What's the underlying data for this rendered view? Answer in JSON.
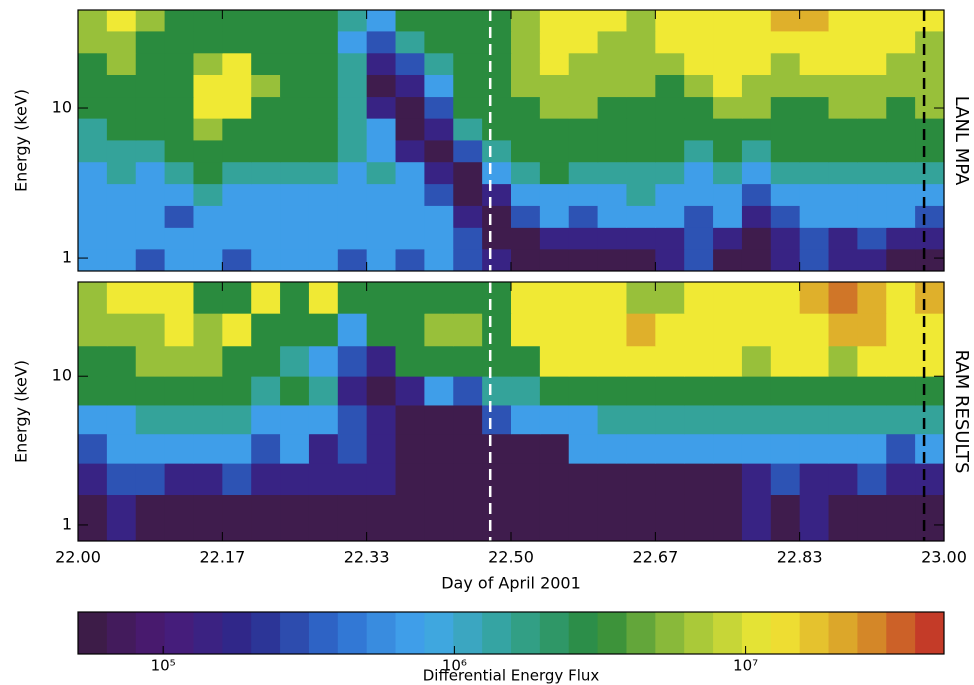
{
  "chart_data": [
    {
      "type": "heatmap",
      "panel_label": "LANL MPA",
      "ylabel": "Energy (keV)",
      "log_y": true,
      "xlim": [
        22,
        23
      ],
      "ylim": [
        0.82,
        45
      ],
      "yticks": [
        1,
        10
      ],
      "y_edges": [
        0.82,
        1.15,
        1.6,
        2.24,
        3.13,
        4.38,
        6.12,
        8.55,
        11.9,
        16.7,
        23.3,
        32.6,
        45
      ],
      "vlines": [
        {
          "value": 22.476,
          "color": "#ffffff"
        },
        {
          "value": 22.977,
          "color": "#000000"
        }
      ],
      "z": [
        [
          700000.0,
          700000.0,
          300000.0,
          700000.0,
          700000.0,
          300000.0,
          700000.0,
          700000.0,
          700000.0,
          300000.0,
          700000.0,
          300000.0,
          700000.0,
          300000.0,
          150000.0,
          60000.0,
          60000.0,
          60000.0,
          60000.0,
          60000.0,
          150000.0,
          300000.0,
          60000.0,
          60000.0,
          150000.0,
          300000.0,
          150000.0,
          150000.0,
          60000.0,
          60000.0
        ],
        [
          700000.0,
          700000.0,
          700000.0,
          700000.0,
          700000.0,
          700000.0,
          700000.0,
          700000.0,
          700000.0,
          700000.0,
          700000.0,
          700000.0,
          700000.0,
          300000.0,
          60000.0,
          60000.0,
          150000.0,
          150000.0,
          150000.0,
          150000.0,
          150000.0,
          300000.0,
          150000.0,
          60000.0,
          150000.0,
          300000.0,
          150000.0,
          300000.0,
          150000.0,
          150000.0
        ],
        [
          700000.0,
          700000.0,
          700000.0,
          300000.0,
          700000.0,
          700000.0,
          700000.0,
          700000.0,
          700000.0,
          700000.0,
          700000.0,
          700000.0,
          700000.0,
          150000.0,
          60000.0,
          300000.0,
          700000.0,
          300000.0,
          700000.0,
          700000.0,
          700000.0,
          300000.0,
          700000.0,
          150000.0,
          300000.0,
          700000.0,
          700000.0,
          700000.0,
          700000.0,
          300000.0
        ],
        [
          700000.0,
          700000.0,
          700000.0,
          700000.0,
          1500000.0,
          700000.0,
          700000.0,
          700000.0,
          700000.0,
          700000.0,
          700000.0,
          700000.0,
          300000.0,
          60000.0,
          150000.0,
          700000.0,
          700000.0,
          700000.0,
          700000.0,
          1500000.0,
          700000.0,
          700000.0,
          700000.0,
          300000.0,
          700000.0,
          700000.0,
          700000.0,
          700000.0,
          700000.0,
          700000.0
        ],
        [
          700000.0,
          1500000.0,
          700000.0,
          1500000.0,
          3000000.0,
          1500000.0,
          1500000.0,
          1500000.0,
          1500000.0,
          700000.0,
          1500000.0,
          700000.0,
          150000.0,
          60000.0,
          700000.0,
          1500000.0,
          3000000.0,
          1500000.0,
          1500000.0,
          1500000.0,
          1500000.0,
          700000.0,
          1500000.0,
          700000.0,
          1500000.0,
          1500000.0,
          1500000.0,
          1500000.0,
          1500000.0,
          1500000.0
        ],
        [
          1500000.0,
          1500000.0,
          1500000.0,
          3000000.0,
          3000000.0,
          3000000.0,
          3000000.0,
          3000000.0,
          3000000.0,
          1500000.0,
          700000.0,
          150000.0,
          60000.0,
          300000.0,
          1500000.0,
          3000000.0,
          3000000.0,
          3000000.0,
          3000000.0,
          3000000.0,
          3000000.0,
          1500000.0,
          3000000.0,
          1500000.0,
          3000000.0,
          3000000.0,
          3000000.0,
          3000000.0,
          3000000.0,
          3000000.0
        ],
        [
          1500000.0,
          3000000.0,
          3000000.0,
          3000000.0,
          6000000.0,
          3000000.0,
          3000000.0,
          3000000.0,
          3000000.0,
          1500000.0,
          700000.0,
          60000.0,
          150000.0,
          1500000.0,
          3000000.0,
          3000000.0,
          3000000.0,
          3000000.0,
          3000000.0,
          3000000.0,
          3000000.0,
          3000000.0,
          3000000.0,
          3000000.0,
          3000000.0,
          3000000.0,
          3000000.0,
          3000000.0,
          3000000.0,
          3000000.0
        ],
        [
          3000000.0,
          3000000.0,
          3000000.0,
          3000000.0,
          12000000.0,
          12000000.0,
          3000000.0,
          3000000.0,
          3000000.0,
          1500000.0,
          150000.0,
          60000.0,
          300000.0,
          3000000.0,
          3000000.0,
          3000000.0,
          6000000.0,
          6000000.0,
          3000000.0,
          3000000.0,
          3000000.0,
          3000000.0,
          6000000.0,
          6000000.0,
          3000000.0,
          3000000.0,
          6000000.0,
          6000000.0,
          3000000.0,
          6000000.0
        ],
        [
          3000000.0,
          3000000.0,
          3000000.0,
          3000000.0,
          12000000.0,
          12000000.0,
          6000000.0,
          3000000.0,
          3000000.0,
          1500000.0,
          60000.0,
          150000.0,
          700000.0,
          3000000.0,
          3000000.0,
          6000000.0,
          6000000.0,
          6000000.0,
          6000000.0,
          6000000.0,
          3000000.0,
          6000000.0,
          12000000.0,
          6000000.0,
          6000000.0,
          6000000.0,
          6000000.0,
          6000000.0,
          6000000.0,
          6000000.0
        ],
        [
          3000000.0,
          6000000.0,
          3000000.0,
          3000000.0,
          6000000.0,
          12000000.0,
          3000000.0,
          3000000.0,
          3000000.0,
          1500000.0,
          150000.0,
          300000.0,
          1500000.0,
          3000000.0,
          3000000.0,
          6000000.0,
          12000000.0,
          6000000.0,
          6000000.0,
          6000000.0,
          6000000.0,
          12000000.0,
          12000000.0,
          12000000.0,
          6000000.0,
          12000000.0,
          12000000.0,
          12000000.0,
          6000000.0,
          6000000.0
        ],
        [
          6000000.0,
          6000000.0,
          3000000.0,
          3000000.0,
          3000000.0,
          3000000.0,
          3000000.0,
          3000000.0,
          3000000.0,
          700000.0,
          300000.0,
          1500000.0,
          3000000.0,
          3000000.0,
          3000000.0,
          6000000.0,
          12000000.0,
          12000000.0,
          6000000.0,
          6000000.0,
          12000000.0,
          12000000.0,
          12000000.0,
          12000000.0,
          12000000.0,
          12000000.0,
          12000000.0,
          12000000.0,
          12000000.0,
          6000000.0
        ],
        [
          6000000.0,
          12000000.0,
          6000000.0,
          3000000.0,
          3000000.0,
          3000000.0,
          3000000.0,
          3000000.0,
          3000000.0,
          1500000.0,
          700000.0,
          3000000.0,
          3000000.0,
          3000000.0,
          3000000.0,
          6000000.0,
          12000000.0,
          12000000.0,
          12000000.0,
          6000000.0,
          12000000.0,
          12000000.0,
          12000000.0,
          12000000.0,
          20000000.0,
          20000000.0,
          12000000.0,
          12000000.0,
          12000000.0,
          12000000.0
        ]
      ]
    },
    {
      "type": "heatmap",
      "panel_label": "RAM RESULTS",
      "ylabel": "Energy (keV)",
      "xlabel": "Day of April 2001",
      "log_y": true,
      "xlim": [
        22,
        23
      ],
      "ylim": [
        0.78,
        43
      ],
      "yticks": [
        1,
        10
      ],
      "xticks": [
        {
          "value": 22,
          "label": "22.00"
        },
        {
          "value": 22.1667,
          "label": "22.17"
        },
        {
          "value": 22.3333,
          "label": "22.33"
        },
        {
          "value": 22.5,
          "label": "22.50"
        },
        {
          "value": 22.6667,
          "label": "22.67"
        },
        {
          "value": 22.8333,
          "label": "22.83"
        },
        {
          "value": 23,
          "label": "23.00"
        }
      ],
      "y_edges": [
        0.78,
        1.6,
        2.6,
        4.1,
        6.4,
        10,
        16,
        26.5,
        43
      ],
      "vlines": [
        {
          "value": 22.476,
          "color": "#ffffff"
        },
        {
          "value": 22.977,
          "color": "#000000"
        }
      ],
      "z": [
        [
          60000.0,
          150000.0,
          60000.0,
          60000.0,
          60000.0,
          60000.0,
          60000.0,
          60000.0,
          60000.0,
          60000.0,
          60000.0,
          60000.0,
          60000.0,
          60000.0,
          60000.0,
          60000.0,
          60000.0,
          60000.0,
          60000.0,
          60000.0,
          60000.0,
          60000.0,
          60000.0,
          150000.0,
          60000.0,
          150000.0,
          60000.0,
          60000.0,
          60000.0,
          60000.0
        ],
        [
          150000.0,
          300000.0,
          300000.0,
          150000.0,
          150000.0,
          300000.0,
          150000.0,
          150000.0,
          150000.0,
          150000.0,
          150000.0,
          60000.0,
          60000.0,
          60000.0,
          60000.0,
          60000.0,
          60000.0,
          60000.0,
          60000.0,
          60000.0,
          60000.0,
          60000.0,
          60000.0,
          150000.0,
          300000.0,
          150000.0,
          150000.0,
          300000.0,
          150000.0,
          150000.0
        ],
        [
          300000.0,
          700000.0,
          700000.0,
          700000.0,
          700000.0,
          700000.0,
          300000.0,
          700000.0,
          150000.0,
          300000.0,
          150000.0,
          60000.0,
          60000.0,
          60000.0,
          60000.0,
          60000.0,
          60000.0,
          700000.0,
          700000.0,
          700000.0,
          700000.0,
          700000.0,
          700000.0,
          700000.0,
          700000.0,
          700000.0,
          700000.0,
          700000.0,
          300000.0,
          700000.0
        ],
        [
          700000.0,
          700000.0,
          1500000.0,
          1500000.0,
          1500000.0,
          1500000.0,
          700000.0,
          700000.0,
          700000.0,
          300000.0,
          150000.0,
          60000.0,
          60000.0,
          60000.0,
          300000.0,
          700000.0,
          700000.0,
          700000.0,
          1500000.0,
          1500000.0,
          1500000.0,
          1500000.0,
          1500000.0,
          1500000.0,
          1500000.0,
          1500000.0,
          1500000.0,
          1500000.0,
          1500000.0,
          1500000.0
        ],
        [
          3000000.0,
          3000000.0,
          3000000.0,
          3000000.0,
          3000000.0,
          3000000.0,
          1500000.0,
          3000000.0,
          1500000.0,
          150000.0,
          60000.0,
          150000.0,
          700000.0,
          300000.0,
          1500000.0,
          1500000.0,
          3000000.0,
          3000000.0,
          3000000.0,
          3000000.0,
          3000000.0,
          3000000.0,
          3000000.0,
          3000000.0,
          3000000.0,
          3000000.0,
          3000000.0,
          3000000.0,
          3000000.0,
          3000000.0
        ],
        [
          3000000.0,
          3000000.0,
          6000000.0,
          6000000.0,
          6000000.0,
          3000000.0,
          3000000.0,
          1500000.0,
          700000.0,
          300000.0,
          150000.0,
          3000000.0,
          3000000.0,
          3000000.0,
          3000000.0,
          3000000.0,
          12000000.0,
          12000000.0,
          12000000.0,
          12000000.0,
          12000000.0,
          12000000.0,
          12000000.0,
          6000000.0,
          12000000.0,
          12000000.0,
          6000000.0,
          12000000.0,
          12000000.0,
          12000000.0
        ],
        [
          6000000.0,
          6000000.0,
          6000000.0,
          12000000.0,
          6000000.0,
          12000000.0,
          3000000.0,
          3000000.0,
          3000000.0,
          700000.0,
          3000000.0,
          3000000.0,
          6000000.0,
          6000000.0,
          3000000.0,
          12000000.0,
          12000000.0,
          12000000.0,
          12000000.0,
          20000000.0,
          12000000.0,
          12000000.0,
          12000000.0,
          12000000.0,
          12000000.0,
          12000000.0,
          20000000.0,
          20000000.0,
          12000000.0,
          12000000.0
        ],
        [
          6000000.0,
          12000000.0,
          12000000.0,
          12000000.0,
          3000000.0,
          3000000.0,
          12000000.0,
          3000000.0,
          12000000.0,
          3000000.0,
          3000000.0,
          3000000.0,
          3000000.0,
          3000000.0,
          3000000.0,
          12000000.0,
          12000000.0,
          12000000.0,
          12000000.0,
          6000000.0,
          6000000.0,
          12000000.0,
          12000000.0,
          12000000.0,
          12000000.0,
          20000000.0,
          30000000.0,
          20000000.0,
          12000000.0,
          20000000.0
        ]
      ]
    },
    {
      "type": "colorbar",
      "label": "Differential Energy Flux",
      "log": true,
      "zlim": [
        51000,
        48000000
      ],
      "zticks": [
        {
          "value": 100000,
          "label": "10⁵"
        },
        {
          "value": 1000000,
          "label": "10⁶"
        },
        {
          "value": 10000000,
          "label": "10⁷"
        }
      ],
      "colormap": [
        "#3b1c3f",
        "#4a1a78",
        "#2b2a8c",
        "#2f6fd0",
        "#42a8ee",
        "#33a394",
        "#2a8a3a",
        "#9cc23a",
        "#f2ea34",
        "#d89a28",
        "#c02828"
      ]
    }
  ]
}
